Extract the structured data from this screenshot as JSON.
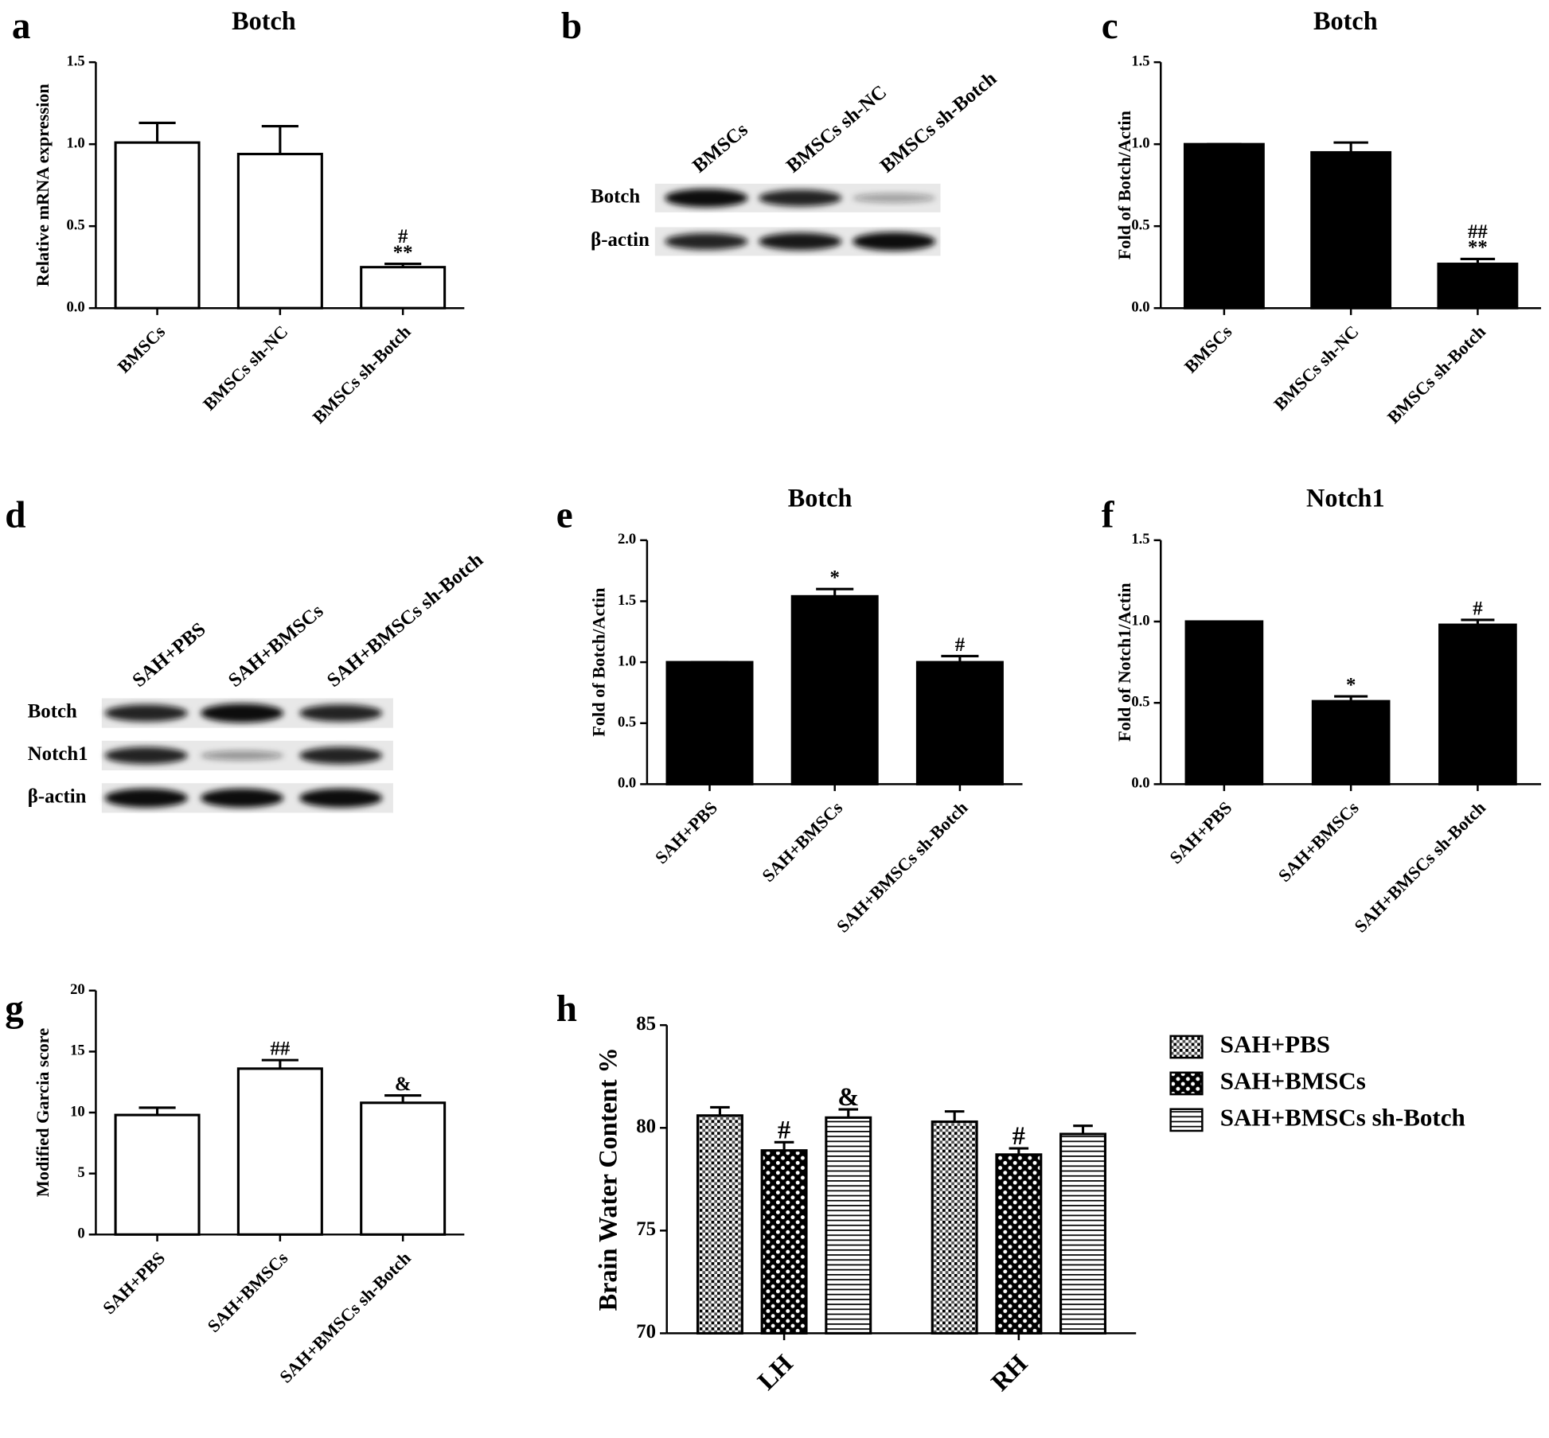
{
  "chart_data": [
    {
      "type": "bar",
      "panel": "a",
      "title": "Botch",
      "ylabel": "Relative mRNA expression",
      "categories": [
        "BMSCs",
        "BMSCs sh-NC",
        "BMSCs sh-Botch"
      ],
      "values": [
        1.01,
        0.94,
        0.25
      ],
      "errors": [
        0.12,
        0.17,
        0.02
      ],
      "annotations": [
        {
          "index": 2,
          "lines": [
            "#",
            "**"
          ]
        }
      ],
      "color": "#ffffff",
      "ylim": [
        0,
        1.5
      ],
      "yticks": [
        {
          "value": 0,
          "label": "0.0"
        },
        0.5,
        {
          "value": 1,
          "label": "1.0"
        },
        1.5
      ]
    },
    {
      "type": "bar",
      "panel": "c",
      "title": "Botch",
      "ylabel": "Fold of Botch/Actin",
      "categories": [
        "BMSCs",
        "BMSCs sh-NC",
        "BMSCs sh-Botch"
      ],
      "values": [
        1.0,
        0.95,
        0.27
      ],
      "errors": [
        0,
        0.06,
        0.03
      ],
      "annotations": [
        {
          "index": 2,
          "lines": [
            "##",
            "**"
          ]
        }
      ],
      "color": "#000000",
      "ylim": [
        0,
        1.5
      ],
      "yticks": [
        {
          "value": 0,
          "label": "0.0"
        },
        0.5,
        {
          "value": 1,
          "label": "1.0"
        },
        1.5
      ]
    },
    {
      "type": "bar",
      "panel": "e",
      "title": "Botch",
      "ylabel": "Fold of Botch/Actin",
      "categories": [
        "SAH+PBS",
        "SAH+BMSCs",
        "SAH+BMSCs sh-Botch"
      ],
      "values": [
        1.0,
        1.54,
        1.0
      ],
      "errors": [
        0,
        0.06,
        0.05
      ],
      "annotations": [
        {
          "index": 1,
          "lines": [
            "*"
          ]
        },
        {
          "index": 2,
          "lines": [
            "#"
          ]
        }
      ],
      "color": "#000000",
      "ylim": [
        0,
        2
      ],
      "yticks": [
        {
          "value": 0,
          "label": "0.0"
        },
        0.5,
        {
          "value": 1,
          "label": "1.0"
        },
        1.5,
        {
          "value": 2,
          "label": "2.0"
        }
      ]
    },
    {
      "type": "bar",
      "panel": "f",
      "title": "Notch1",
      "ylabel": "Fold of Notch1/Actin",
      "categories": [
        "SAH+PBS",
        "SAH+BMSCs",
        "SAH+BMSCs sh-Botch"
      ],
      "values": [
        1.0,
        0.51,
        0.98
      ],
      "errors": [
        0,
        0.03,
        0.03
      ],
      "annotations": [
        {
          "index": 1,
          "lines": [
            "*"
          ]
        },
        {
          "index": 2,
          "lines": [
            "#"
          ]
        }
      ],
      "color": "#000000",
      "ylim": [
        0,
        1.5
      ],
      "yticks": [
        {
          "value": 0,
          "label": "0.0"
        },
        0.5,
        {
          "value": 1,
          "label": "1.0"
        },
        1.5
      ]
    },
    {
      "type": "bar",
      "panel": "g",
      "ylabel": "Modified Garcia score",
      "categories": [
        "SAH+PBS",
        "SAH+BMSCs",
        "SAH+BMSCs sh-Botch"
      ],
      "values": [
        9.8,
        13.6,
        10.8
      ],
      "errors": [
        0.6,
        0.7,
        0.6
      ],
      "annotations": [
        {
          "index": 1,
          "lines": [
            "##"
          ]
        },
        {
          "index": 2,
          "lines": [
            "&"
          ]
        }
      ],
      "color": "#ffffff",
      "ylim": [
        0,
        20
      ],
      "yticks": [
        0,
        5,
        10,
        15,
        20
      ]
    },
    {
      "type": "grouped-bar",
      "panel": "h",
      "ylabel": "Brain Water Content %",
      "categories": [
        "LH",
        "RH"
      ],
      "series": [
        {
          "name": "SAH+PBS",
          "pattern": "dots",
          "values": [
            80.6,
            80.3
          ],
          "errors": [
            0.4,
            0.5
          ],
          "annotations": []
        },
        {
          "name": "SAH+BMSCs",
          "pattern": "checker",
          "values": [
            78.9,
            78.7
          ],
          "errors": [
            0.4,
            0.3
          ],
          "annotations": [
            {
              "index": 0,
              "lines": [
                "#"
              ]
            },
            {
              "index": 1,
              "lines": [
                "#"
              ]
            }
          ]
        },
        {
          "name": "SAH+BMSCs sh-Botch",
          "pattern": "hlines",
          "values": [
            80.5,
            79.7
          ],
          "errors": [
            0.4,
            0.4
          ],
          "annotations": [
            {
              "index": 0,
              "lines": [
                "&"
              ]
            }
          ]
        }
      ],
      "legend": "upper right",
      "ylim": [
        70,
        85
      ],
      "yticks": [
        70,
        75,
        80,
        85
      ]
    }
  ],
  "blots": [
    {
      "panel": "b",
      "lanes": [
        "BMSCs",
        "BMSCs sh-NC",
        "BMSCs sh-Botch"
      ],
      "rows": [
        "Botch",
        "β-actin"
      ]
    },
    {
      "panel": "d",
      "lanes": [
        "SAH+PBS",
        "SAH+BMSCs",
        "SAH+BMSCs sh-Botch"
      ],
      "rows": [
        "Botch",
        "Notch1",
        "β-actin"
      ]
    }
  ]
}
